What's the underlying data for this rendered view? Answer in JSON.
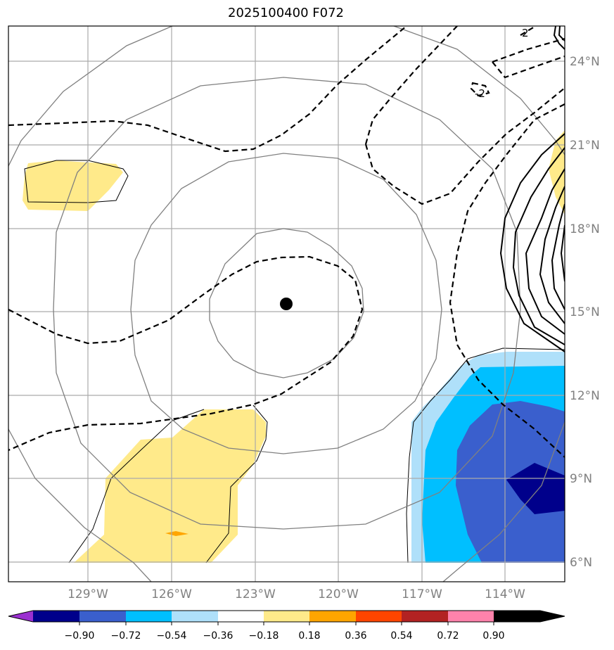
{
  "title": "2025100400 F072",
  "lat_labels": [
    "24°N",
    "21°N",
    "18°N",
    "15°N",
    "12°N",
    "9°N",
    "6°N"
  ],
  "lon_labels": [
    "129°W",
    "126°W",
    "123°W",
    "120°W",
    "117°W",
    "114°W"
  ],
  "colorbar": {
    "tick_labels": [
      "−0.90",
      "−0.72",
      "−0.54",
      "−0.36",
      "−0.18",
      "0.18",
      "0.36",
      "0.54",
      "0.72",
      "0.90"
    ],
    "colors": [
      "#9b30d0",
      "#00008b",
      "#3a5fcd",
      "#00bfff",
      "#afe0fa",
      "#ffffff",
      "#ffea8a",
      "#ffa500",
      "#ff4500",
      "#b22222",
      "#ff82ab"
    ]
  },
  "contour_labels": [
    "2",
    "-2"
  ],
  "center_marker": {
    "lon": -121.8,
    "lat": 15.2
  }
}
